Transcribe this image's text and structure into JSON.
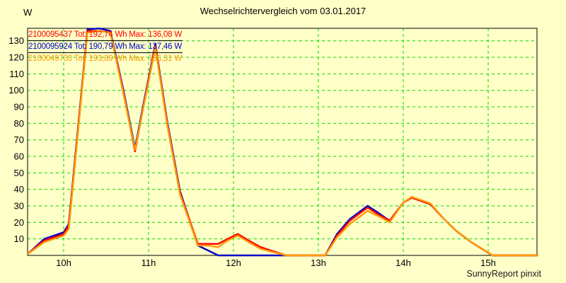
{
  "footer": {
    "text": "SunnyReport pinxit"
  },
  "colors": {
    "background": "#FFFFC8",
    "grid": "#00DD00",
    "axis": "#000000",
    "series_red": "#FF0000",
    "series_blue": "#0000CC",
    "series_orange": "#FF9900"
  },
  "chart_data": {
    "type": "line",
    "title": "Wechselrichtervergleich vom 03.01.2017",
    "ylabel": "W",
    "xlabel": "",
    "x_unit": "hour of day",
    "xlim": [
      9.575,
      15.575
    ],
    "ylim": [
      0,
      137.6
    ],
    "grid": {
      "visible": true,
      "style": "dashed",
      "color": "#00DD00"
    },
    "legend_position": "top-left",
    "y_ticks": [
      10,
      20,
      30,
      40,
      50,
      60,
      70,
      80,
      90,
      100,
      110,
      120,
      130
    ],
    "x_ticks": [
      {
        "value": 10,
        "label": "10h"
      },
      {
        "value": 11,
        "label": "11h"
      },
      {
        "value": 12,
        "label": "12h"
      },
      {
        "value": 13,
        "label": "13h"
      },
      {
        "value": 14,
        "label": "14h"
      },
      {
        "value": 15,
        "label": "15h"
      }
    ],
    "legend": [
      {
        "label": "2100095437 Tot: 192,74 Wh Max: 136,08 W",
        "color": "#FF0000"
      },
      {
        "label": "2100095924 Tot: 190,79 Wh Max: 137,46 W",
        "color": "#0000CC"
      },
      {
        "label": "2100049733 Tot: 193,89 Wh Max: 136,31 W",
        "color": "#FF9900"
      }
    ],
    "x": [
      9.58,
      9.77,
      10.0,
      10.06,
      10.28,
      10.42,
      10.55,
      10.7,
      10.84,
      10.96,
      11.08,
      11.22,
      11.37,
      11.58,
      11.7,
      11.82,
      11.93,
      12.05,
      12.18,
      12.32,
      12.62,
      13.08,
      13.22,
      13.37,
      13.58,
      13.7,
      13.84,
      14.0,
      14.1,
      14.32,
      14.48,
      14.62,
      14.8,
      15.05,
      15.58
    ],
    "series": [
      {
        "name": "2100095437",
        "color": "#FF0000",
        "values": [
          1,
          9,
          13,
          18,
          136,
          136,
          135,
          100,
          63,
          96,
          127,
          80,
          38,
          7,
          7,
          7,
          10,
          13,
          9,
          5,
          0,
          0,
          12,
          21,
          29,
          25,
          21,
          32,
          35,
          31,
          22,
          15,
          8,
          0,
          0
        ]
      },
      {
        "name": "2100095924",
        "color": "#0000CC",
        "values": [
          1,
          10,
          14,
          19,
          137,
          137.5,
          136,
          101,
          65,
          97,
          128,
          81,
          39,
          6,
          3,
          0,
          0,
          0,
          0,
          0,
          0,
          0,
          13,
          22,
          30,
          26,
          21,
          32,
          35,
          31,
          22,
          15,
          8,
          0,
          0
        ]
      },
      {
        "name": "2100049733",
        "color": "#FF9900",
        "values": [
          1,
          8,
          12,
          16,
          135,
          136,
          135,
          99,
          64,
          95,
          126,
          79,
          37,
          6,
          6,
          5,
          9,
          12,
          8,
          4,
          0,
          0,
          11,
          19,
          27,
          24,
          20,
          32,
          35.5,
          31.5,
          22,
          15,
          8,
          0,
          0
        ]
      }
    ],
    "draw_order": [
      1,
      0,
      2
    ]
  }
}
